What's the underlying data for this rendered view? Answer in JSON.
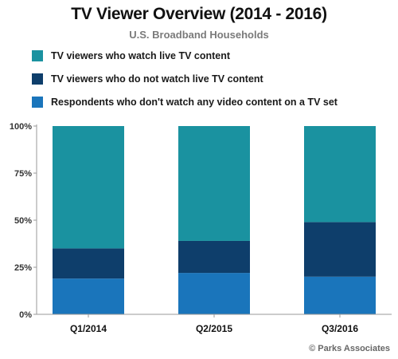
{
  "header": {
    "title": "TV Viewer Overview (2014 - 2016)",
    "subtitle": "U.S. Broadband Households"
  },
  "source": "© Parks Associates",
  "chart_data": {
    "type": "bar",
    "stacked": true,
    "categories": [
      "Q1/2014",
      "Q2/2015",
      "Q3/2016"
    ],
    "series": [
      {
        "name": "Respondents who don't watch any video content on a TV set",
        "values": [
          19,
          22,
          20
        ],
        "color": "#1a75bb"
      },
      {
        "name": "TV viewers who do not watch live TV content",
        "values": [
          16,
          17,
          29
        ],
        "color": "#0e3e6b"
      },
      {
        "name": "TV viewers who watch live TV content",
        "values": [
          65,
          61,
          51
        ],
        "color": "#1a92a0"
      }
    ],
    "legend_order": [
      2,
      1,
      0
    ],
    "y_ticks": [
      "0%",
      "25%",
      "50%",
      "75%",
      "100%"
    ],
    "ylim": [
      0,
      100
    ],
    "grid": false,
    "legend_position": "top-left",
    "axis_color": "#9a9a9a"
  }
}
